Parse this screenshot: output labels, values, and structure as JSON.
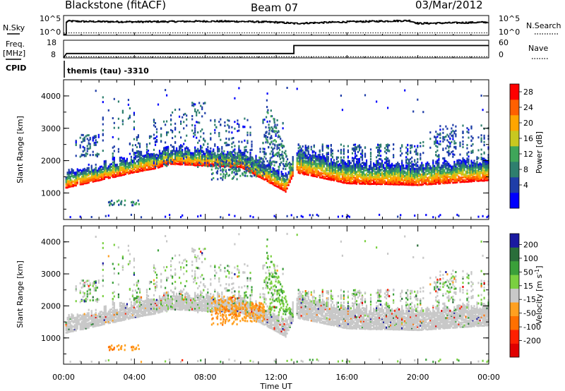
{
  "header": {
    "station": "Blackstone (fitACF)",
    "beam": "Beam 07",
    "date": "03/Mar/2012"
  },
  "noise_panel": {
    "left_label": "N.Sky",
    "right_label": "N.Search",
    "left_ticks": [
      "10^5",
      "10^0"
    ],
    "right_ticks": [
      "10^5",
      "10^0"
    ]
  },
  "freq_panel": {
    "left_label_1": "Freq.",
    "left_label_2": "[MHz]",
    "right_label": "Nave",
    "left_ticks": [
      "18",
      "8"
    ],
    "right_ticks": [
      "60",
      "0"
    ],
    "cpid_label": "CPID",
    "cpid_text": "themis (tau) -3310"
  },
  "chart_data": [
    {
      "type": "line",
      "panel": "noise",
      "series": [
        {
          "name": "N.Sky",
          "x": [
            "00:00",
            "00:10",
            "01:00",
            "04:00",
            "08:00",
            "10:00",
            "12:00",
            "13:00",
            "16:00",
            "19:30",
            "20:00",
            "24:00"
          ],
          "y_fraction": [
            0.05,
            0.72,
            0.7,
            0.68,
            0.71,
            0.7,
            0.66,
            0.6,
            0.68,
            0.74,
            0.6,
            0.66
          ]
        },
        {
          "name": "N.Search",
          "x": [
            "00:00",
            "24:00"
          ],
          "y_fraction": [
            0.12,
            0.12
          ]
        }
      ]
    },
    {
      "type": "line",
      "panel": "frequency",
      "series": [
        {
          "name": "Freq.",
          "x": [
            "00:00",
            "00:10",
            "13:00",
            "13:00",
            "24:00"
          ],
          "y": [
            8,
            10.5,
            10.5,
            15,
            15
          ]
        },
        {
          "name": "Nave",
          "x": [
            "00:00",
            "24:00"
          ],
          "y": [
            4,
            4
          ]
        }
      ]
    },
    {
      "type": "heatmap",
      "panel": "power",
      "xlabel": "",
      "ylabel": "Slant Range [km]",
      "x_ticks": [
        "00:00",
        "04:00",
        "08:00",
        "12:00",
        "16:00",
        "20:00",
        "00:00"
      ],
      "y_ticks": [
        "1000",
        "2000",
        "3000",
        "4000"
      ],
      "ylim": [
        180,
        4500
      ],
      "colorbar_label": "Power [dB]",
      "colorbar_ticks": [
        "28",
        "24",
        "20",
        "16",
        "12",
        "8",
        "4"
      ],
      "colors": [
        "#0000ff",
        "#1f3ea8",
        "#2e7f6e",
        "#3fa65a",
        "#c8c820",
        "#ffa500",
        "#ff6000",
        "#ff0000"
      ],
      "band_lower_km": [
        [
          0,
          1150
        ],
        [
          2,
          1400
        ],
        [
          4,
          1650
        ],
        [
          5,
          1750
        ],
        [
          6,
          1900
        ],
        [
          10,
          1800
        ],
        [
          12.5,
          1050
        ],
        [
          13,
          1650
        ],
        [
          16,
          1300
        ],
        [
          20,
          1250
        ],
        [
          24,
          1400
        ]
      ]
    },
    {
      "type": "heatmap",
      "panel": "velocity",
      "xlabel": "Time UT",
      "ylabel": "Slant Range [km]",
      "x_ticks": [
        "00:00",
        "04:00",
        "08:00",
        "12:00",
        "16:00",
        "20:00",
        "00:00"
      ],
      "y_ticks": [
        "1000",
        "2000",
        "3000",
        "4000"
      ],
      "ylim": [
        180,
        4500
      ],
      "colorbar_label": "Velocity [m s^-1]",
      "colorbar_ticks": [
        "200",
        "100",
        "50",
        "15",
        "-15",
        "-50",
        "-100",
        "-200"
      ],
      "colors": [
        "#1a1aa0",
        "#2a6e3a",
        "#3aa03a",
        "#7ad040",
        "#c8c8c8",
        "#ffa020",
        "#ff7000",
        "#ff2000",
        "#e00000"
      ]
    }
  ],
  "axes": {
    "xlabel": "Time UT"
  }
}
